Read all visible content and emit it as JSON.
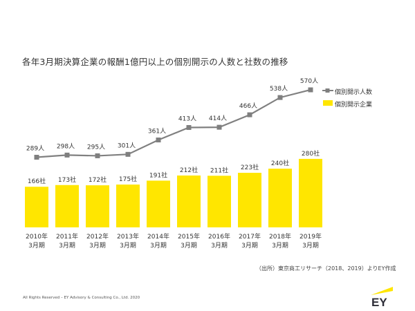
{
  "title": "各年3月期決算企業の報酬1億円以上の個別開示の人数と社数の推移",
  "legend": {
    "line_label": "個別開示人数",
    "bar_label": "個別開示企業"
  },
  "source_note": "（出所）東京商工リサーチ（2018、2019）よりEY作成",
  "copyright": "All Rights Reserved – EY Advisory & Consulting Co., Ltd. 2020",
  "logo_text": "EY",
  "colors": {
    "bar": "#ffe600",
    "line": "#808080",
    "marker": "#7f7f7f",
    "text": "#333333"
  },
  "chart_data": {
    "type": "bar",
    "categories": [
      "2010年\n3月期",
      "2011年\n3月期",
      "2012年\n3月期",
      "2013年\n3月期",
      "2014年\n3月期",
      "2015年\n3月期",
      "2016年\n3月期",
      "2017年\n3月期",
      "2018年\n3月期",
      "2019年\n3月期"
    ],
    "series": [
      {
        "name": "個別開示人数",
        "type": "line",
        "values": [
          289,
          298,
          295,
          301,
          361,
          413,
          414,
          466,
          538,
          570
        ],
        "labels": [
          "289人",
          "298人",
          "295人",
          "301人",
          "361人",
          "413人",
          "414人",
          "466人",
          "538人",
          "570人"
        ]
      },
      {
        "name": "個別開示企業",
        "type": "bar",
        "values": [
          166,
          173,
          172,
          175,
          191,
          212,
          211,
          223,
          240,
          280
        ],
        "labels": [
          "166社",
          "173社",
          "172社",
          "175社",
          "191社",
          "212社",
          "211社",
          "223社",
          "240社",
          "280社"
        ]
      }
    ],
    "legend_position": "right",
    "grid": false
  }
}
